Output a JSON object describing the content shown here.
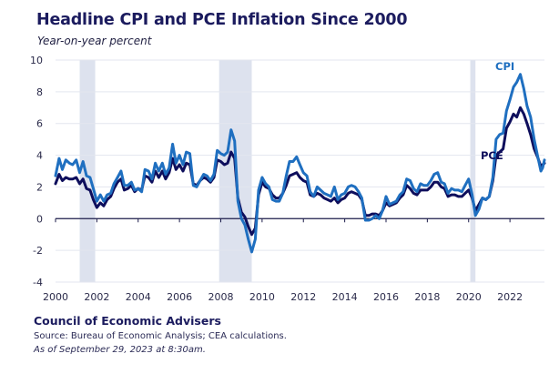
{
  "header": {
    "title": "Headline CPI and PCE Inflation Since 2000",
    "subtitle": "Year-on-year percent"
  },
  "footer": {
    "organization": "Council of Economic Advisers",
    "source": "Source: Bureau of Economic Analysis; CEA calculations.",
    "as_of": "As of September 29, 2023 at 8:30am."
  },
  "colors": {
    "cpi": "#1f6fc0",
    "pce": "#0e0e5c",
    "recession": "#dde2ee",
    "grid": "#e3e6ef",
    "zero_axis": "#1b1b4a"
  },
  "chart_data": {
    "type": "line",
    "title": "Headline CPI and PCE Inflation Since 2000",
    "subtitle": "Year-on-year percent",
    "xlabel": "",
    "ylabel": "Year-on-year percent",
    "xlim": [
      2000,
      2023.67
    ],
    "ylim": [
      -4,
      10
    ],
    "x_ticks": [
      2000,
      2002,
      2004,
      2006,
      2008,
      2010,
      2012,
      2014,
      2016,
      2018,
      2020,
      2022
    ],
    "x_tick_labels": [
      "2000",
      "2002",
      "2004",
      "2006",
      "2008",
      "2010",
      "2012",
      "2014",
      "2016",
      "2018",
      "2020",
      "2022"
    ],
    "y_ticks": [
      -4,
      -2,
      0,
      2,
      4,
      6,
      8,
      10
    ],
    "y_tick_labels": [
      "-4",
      "-2",
      "0",
      "2",
      "4",
      "6",
      "8",
      "10"
    ],
    "grid": true,
    "legend": "inline labels at right (CPI top-right, PCE right)",
    "shaded_regions": [
      {
        "name": "recession",
        "start": 2001.17,
        "end": 2001.92
      },
      {
        "name": "recession",
        "start": 2007.92,
        "end": 2009.5
      },
      {
        "name": "recession",
        "start": 2020.08,
        "end": 2020.33
      }
    ],
    "series": [
      {
        "name": "CPI",
        "label": "CPI",
        "points": [
          [
            2000.0,
            2.7
          ],
          [
            2000.17,
            3.8
          ],
          [
            2000.33,
            3.1
          ],
          [
            2000.5,
            3.7
          ],
          [
            2000.67,
            3.5
          ],
          [
            2000.83,
            3.4
          ],
          [
            2001.0,
            3.7
          ],
          [
            2001.17,
            2.9
          ],
          [
            2001.33,
            3.6
          ],
          [
            2001.5,
            2.7
          ],
          [
            2001.67,
            2.6
          ],
          [
            2001.83,
            1.9
          ],
          [
            2002.0,
            1.1
          ],
          [
            2002.17,
            1.5
          ],
          [
            2002.33,
            1.1
          ],
          [
            2002.5,
            1.5
          ],
          [
            2002.67,
            1.6
          ],
          [
            2002.83,
            2.2
          ],
          [
            2003.0,
            2.6
          ],
          [
            2003.17,
            3.0
          ],
          [
            2003.33,
            2.1
          ],
          [
            2003.5,
            2.1
          ],
          [
            2003.67,
            2.3
          ],
          [
            2003.83,
            1.8
          ],
          [
            2004.0,
            1.9
          ],
          [
            2004.17,
            1.7
          ],
          [
            2004.33,
            3.1
          ],
          [
            2004.5,
            3.0
          ],
          [
            2004.67,
            2.5
          ],
          [
            2004.83,
            3.5
          ],
          [
            2005.0,
            3.0
          ],
          [
            2005.17,
            3.5
          ],
          [
            2005.33,
            2.8
          ],
          [
            2005.5,
            3.2
          ],
          [
            2005.67,
            4.7
          ],
          [
            2005.83,
            3.5
          ],
          [
            2006.0,
            4.0
          ],
          [
            2006.17,
            3.4
          ],
          [
            2006.33,
            4.2
          ],
          [
            2006.5,
            4.1
          ],
          [
            2006.67,
            2.1
          ],
          [
            2006.83,
            2.0
          ],
          [
            2007.0,
            2.4
          ],
          [
            2007.17,
            2.8
          ],
          [
            2007.33,
            2.7
          ],
          [
            2007.5,
            2.4
          ],
          [
            2007.67,
            2.8
          ],
          [
            2007.83,
            4.3
          ],
          [
            2008.0,
            4.1
          ],
          [
            2008.17,
            4.0
          ],
          [
            2008.33,
            4.2
          ],
          [
            2008.5,
            5.6
          ],
          [
            2008.67,
            4.9
          ],
          [
            2008.83,
            1.1
          ],
          [
            2009.0,
            0.0
          ],
          [
            2009.17,
            -0.4
          ],
          [
            2009.33,
            -1.3
          ],
          [
            2009.5,
            -2.1
          ],
          [
            2009.67,
            -1.3
          ],
          [
            2009.83,
            1.8
          ],
          [
            2010.0,
            2.6
          ],
          [
            2010.17,
            2.2
          ],
          [
            2010.33,
            2.0
          ],
          [
            2010.5,
            1.2
          ],
          [
            2010.67,
            1.1
          ],
          [
            2010.83,
            1.1
          ],
          [
            2011.0,
            1.6
          ],
          [
            2011.17,
            2.7
          ],
          [
            2011.33,
            3.6
          ],
          [
            2011.5,
            3.6
          ],
          [
            2011.67,
            3.9
          ],
          [
            2011.83,
            3.4
          ],
          [
            2012.0,
            2.9
          ],
          [
            2012.17,
            2.7
          ],
          [
            2012.33,
            1.7
          ],
          [
            2012.5,
            1.4
          ],
          [
            2012.67,
            2.0
          ],
          [
            2012.83,
            1.8
          ],
          [
            2013.0,
            1.6
          ],
          [
            2013.17,
            1.5
          ],
          [
            2013.33,
            1.4
          ],
          [
            2013.5,
            2.0
          ],
          [
            2013.67,
            1.2
          ],
          [
            2013.83,
            1.5
          ],
          [
            2014.0,
            1.6
          ],
          [
            2014.17,
            2.0
          ],
          [
            2014.33,
            2.1
          ],
          [
            2014.5,
            2.0
          ],
          [
            2014.67,
            1.7
          ],
          [
            2014.83,
            1.3
          ],
          [
            2015.0,
            -0.1
          ],
          [
            2015.17,
            -0.1
          ],
          [
            2015.33,
            0.0
          ],
          [
            2015.5,
            0.2
          ],
          [
            2015.67,
            0.0
          ],
          [
            2015.83,
            0.5
          ],
          [
            2016.0,
            1.4
          ],
          [
            2016.17,
            0.9
          ],
          [
            2016.33,
            1.0
          ],
          [
            2016.5,
            1.1
          ],
          [
            2016.67,
            1.5
          ],
          [
            2016.83,
            1.7
          ],
          [
            2017.0,
            2.5
          ],
          [
            2017.17,
            2.4
          ],
          [
            2017.33,
            1.9
          ],
          [
            2017.5,
            1.7
          ],
          [
            2017.67,
            2.2
          ],
          [
            2017.83,
            2.1
          ],
          [
            2018.0,
            2.1
          ],
          [
            2018.17,
            2.4
          ],
          [
            2018.33,
            2.8
          ],
          [
            2018.5,
            2.9
          ],
          [
            2018.67,
            2.3
          ],
          [
            2018.83,
            2.2
          ],
          [
            2019.0,
            1.6
          ],
          [
            2019.17,
            1.9
          ],
          [
            2019.33,
            1.8
          ],
          [
            2019.5,
            1.8
          ],
          [
            2019.67,
            1.7
          ],
          [
            2019.83,
            2.1
          ],
          [
            2020.0,
            2.5
          ],
          [
            2020.17,
            1.5
          ],
          [
            2020.33,
            0.2
          ],
          [
            2020.5,
            0.6
          ],
          [
            2020.67,
            1.3
          ],
          [
            2020.83,
            1.2
          ],
          [
            2021.0,
            1.4
          ],
          [
            2021.17,
            2.6
          ],
          [
            2021.33,
            5.0
          ],
          [
            2021.5,
            5.3
          ],
          [
            2021.67,
            5.4
          ],
          [
            2021.83,
            6.8
          ],
          [
            2022.0,
            7.5
          ],
          [
            2022.17,
            8.3
          ],
          [
            2022.33,
            8.6
          ],
          [
            2022.5,
            9.1
          ],
          [
            2022.67,
            8.2
          ],
          [
            2022.83,
            7.1
          ],
          [
            2023.0,
            6.4
          ],
          [
            2023.17,
            5.0
          ],
          [
            2023.33,
            4.0
          ],
          [
            2023.5,
            3.0
          ],
          [
            2023.58,
            3.2
          ],
          [
            2023.67,
            3.7
          ]
        ]
      },
      {
        "name": "PCE",
        "label": "PCE",
        "points": [
          [
            2000.0,
            2.2
          ],
          [
            2000.17,
            2.8
          ],
          [
            2000.33,
            2.4
          ],
          [
            2000.5,
            2.6
          ],
          [
            2000.67,
            2.5
          ],
          [
            2000.83,
            2.5
          ],
          [
            2001.0,
            2.6
          ],
          [
            2001.17,
            2.2
          ],
          [
            2001.33,
            2.5
          ],
          [
            2001.5,
            1.9
          ],
          [
            2001.67,
            1.8
          ],
          [
            2001.83,
            1.2
          ],
          [
            2002.0,
            0.7
          ],
          [
            2002.17,
            1.0
          ],
          [
            2002.33,
            0.8
          ],
          [
            2002.5,
            1.2
          ],
          [
            2002.67,
            1.4
          ],
          [
            2002.83,
            1.9
          ],
          [
            2003.0,
            2.3
          ],
          [
            2003.17,
            2.5
          ],
          [
            2003.33,
            1.8
          ],
          [
            2003.5,
            1.9
          ],
          [
            2003.67,
            2.1
          ],
          [
            2003.83,
            1.7
          ],
          [
            2004.0,
            1.9
          ],
          [
            2004.17,
            1.8
          ],
          [
            2004.33,
            2.7
          ],
          [
            2004.5,
            2.6
          ],
          [
            2004.67,
            2.3
          ],
          [
            2004.83,
            3.0
          ],
          [
            2005.0,
            2.6
          ],
          [
            2005.17,
            3.0
          ],
          [
            2005.33,
            2.5
          ],
          [
            2005.5,
            2.9
          ],
          [
            2005.67,
            3.8
          ],
          [
            2005.83,
            3.1
          ],
          [
            2006.0,
            3.4
          ],
          [
            2006.17,
            3.0
          ],
          [
            2006.33,
            3.5
          ],
          [
            2006.5,
            3.4
          ],
          [
            2006.67,
            2.2
          ],
          [
            2006.83,
            2.1
          ],
          [
            2007.0,
            2.4
          ],
          [
            2007.17,
            2.6
          ],
          [
            2007.33,
            2.5
          ],
          [
            2007.5,
            2.3
          ],
          [
            2007.67,
            2.6
          ],
          [
            2007.83,
            3.7
          ],
          [
            2008.0,
            3.6
          ],
          [
            2008.17,
            3.4
          ],
          [
            2008.33,
            3.5
          ],
          [
            2008.5,
            4.2
          ],
          [
            2008.67,
            3.8
          ],
          [
            2008.83,
            1.3
          ],
          [
            2009.0,
            0.4
          ],
          [
            2009.17,
            0.1
          ],
          [
            2009.33,
            -0.5
          ],
          [
            2009.5,
            -1.0
          ],
          [
            2009.67,
            -0.6
          ],
          [
            2009.83,
            1.5
          ],
          [
            2010.0,
            2.3
          ],
          [
            2010.17,
            2.0
          ],
          [
            2010.33,
            1.9
          ],
          [
            2010.5,
            1.5
          ],
          [
            2010.67,
            1.3
          ],
          [
            2010.83,
            1.3
          ],
          [
            2011.0,
            1.6
          ],
          [
            2011.17,
            2.1
          ],
          [
            2011.33,
            2.7
          ],
          [
            2011.5,
            2.8
          ],
          [
            2011.67,
            2.9
          ],
          [
            2011.83,
            2.6
          ],
          [
            2012.0,
            2.4
          ],
          [
            2012.17,
            2.3
          ],
          [
            2012.33,
            1.5
          ],
          [
            2012.5,
            1.4
          ],
          [
            2012.67,
            1.6
          ],
          [
            2012.83,
            1.5
          ],
          [
            2013.0,
            1.3
          ],
          [
            2013.17,
            1.2
          ],
          [
            2013.33,
            1.1
          ],
          [
            2013.5,
            1.3
          ],
          [
            2013.67,
            1.0
          ],
          [
            2013.83,
            1.2
          ],
          [
            2014.0,
            1.3
          ],
          [
            2014.17,
            1.6
          ],
          [
            2014.33,
            1.7
          ],
          [
            2014.5,
            1.6
          ],
          [
            2014.67,
            1.5
          ],
          [
            2014.83,
            1.2
          ],
          [
            2015.0,
            0.2
          ],
          [
            2015.17,
            0.2
          ],
          [
            2015.33,
            0.3
          ],
          [
            2015.5,
            0.3
          ],
          [
            2015.67,
            0.2
          ],
          [
            2015.83,
            0.5
          ],
          [
            2016.0,
            1.0
          ],
          [
            2016.17,
            0.8
          ],
          [
            2016.33,
            0.9
          ],
          [
            2016.5,
            1.0
          ],
          [
            2016.67,
            1.3
          ],
          [
            2016.83,
            1.5
          ],
          [
            2017.0,
            2.1
          ],
          [
            2017.17,
            1.9
          ],
          [
            2017.33,
            1.6
          ],
          [
            2017.5,
            1.5
          ],
          [
            2017.67,
            1.8
          ],
          [
            2017.83,
            1.8
          ],
          [
            2018.0,
            1.8
          ],
          [
            2018.17,
            2.0
          ],
          [
            2018.33,
            2.3
          ],
          [
            2018.5,
            2.3
          ],
          [
            2018.67,
            2.0
          ],
          [
            2018.83,
            1.9
          ],
          [
            2019.0,
            1.4
          ],
          [
            2019.17,
            1.5
          ],
          [
            2019.33,
            1.5
          ],
          [
            2019.5,
            1.4
          ],
          [
            2019.67,
            1.4
          ],
          [
            2019.83,
            1.6
          ],
          [
            2020.0,
            1.8
          ],
          [
            2020.17,
            1.3
          ],
          [
            2020.33,
            0.5
          ],
          [
            2020.5,
            0.9
          ],
          [
            2020.67,
            1.3
          ],
          [
            2020.83,
            1.2
          ],
          [
            2021.0,
            1.4
          ],
          [
            2021.17,
            2.4
          ],
          [
            2021.33,
            4.0
          ],
          [
            2021.5,
            4.2
          ],
          [
            2021.67,
            4.4
          ],
          [
            2021.83,
            5.7
          ],
          [
            2022.0,
            6.1
          ],
          [
            2022.17,
            6.6
          ],
          [
            2022.33,
            6.4
          ],
          [
            2022.5,
            7.0
          ],
          [
            2022.67,
            6.6
          ],
          [
            2022.83,
            6.0
          ],
          [
            2023.0,
            5.3
          ],
          [
            2023.17,
            4.4
          ],
          [
            2023.33,
            3.9
          ],
          [
            2023.5,
            3.3
          ],
          [
            2023.58,
            3.4
          ],
          [
            2023.67,
            3.5
          ]
        ]
      }
    ]
  }
}
